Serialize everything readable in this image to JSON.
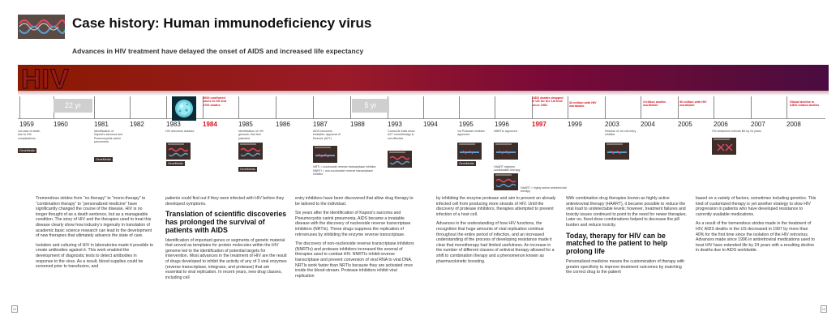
{
  "header": {
    "title": "Case history: Human immunodeficiency virus",
    "subtitle": "Advances in HIV treatment have delayed the onset of AIDS and increased life expectancy",
    "banner_label": "HIV"
  },
  "timeline": {
    "years": [
      {
        "label": "1959",
        "red": false
      },
      {
        "label": "1960",
        "red": false
      },
      {
        "label": "1981",
        "red": false
      },
      {
        "label": "1982",
        "red": false
      },
      {
        "label": "1983",
        "red": false
      },
      {
        "label": "1984",
        "red": true
      },
      {
        "label": "1985",
        "red": false
      },
      {
        "label": "1986",
        "red": false
      },
      {
        "label": "1987",
        "red": false
      },
      {
        "label": "1988",
        "red": false
      },
      {
        "label": "1993",
        "red": false
      },
      {
        "label": "1994",
        "red": false
      },
      {
        "label": "1995",
        "red": false
      },
      {
        "label": "1996",
        "red": false
      },
      {
        "label": "1997",
        "red": true
      },
      {
        "label": "1999",
        "red": false
      },
      {
        "label": "2003",
        "red": false
      },
      {
        "label": "2004",
        "red": false
      },
      {
        "label": "2005",
        "red": false
      },
      {
        "label": "2006",
        "red": false
      },
      {
        "label": "2007",
        "red": false
      },
      {
        "label": "2008",
        "red": false
      }
    ],
    "gaps": [
      "22 yr",
      "5 yr"
    ],
    "notes_below": {
      "y1959": "1st case of death due to HIV complications",
      "y1981": "Identification of Kaposi's sarcoma and Pneumocystis carinii pneumonia",
      "y1983": "HIV retrovirus isolated",
      "y1985": "Identification of HIV genome; first test patented",
      "y1987": "AIDS becomes treatable; approval of Retrovir (AZT)",
      "y1993": "Concorde trials show AZT monotherapy is not effective",
      "y1995": "1st Protease inhibitor approved",
      "y1996": "NNRTIs approved",
      "y1996b": "HAART regimen combination therapy",
      "y2003": "Release of 1st cell entry inhibitor",
      "y2006": "HIV treatment extends life by 24 years"
    },
    "notes_above_red": {
      "y1984": "8000 confirmed cases in US and 3700 deaths",
      "y1997": "AIDS deaths dropped in US for the 1st time since 1981",
      "y1999": "33 million with HIV worldwide",
      "y2004": "3 trillion deaths worldwide",
      "y2005": "40 million with HIV worldwide",
      "y2008": "Global decline in AIDS-related deaths"
    },
    "legend": {
      "nrti": "NRTI = nucleoside reverse transcriptase inhibitor",
      "nnrti": "NNRTI = non-nucleoside reverse transcriptase inhibitor",
      "haart": "HAART = highly active antiretroviral therapy"
    },
    "chip_label": "GeneMedia"
  },
  "article": {
    "col1": [
      "Tremendous strides from “no therapy” to “mono-therapy” to “combination therapy” to “personalized medicine” have significantly changed the course of the disease. HIV is no longer thought of as a death sentence, but as a manageable condition. The story of HIV and the therapies used to treat this disease clearly show how industry’s ingenuity in translation of academic basic science research can lead to the development of new therapies that ultimately advance the state of care.",
      "Isolation and culturing of HIV in laboratories made it possible to create antibodies against it. This work enabled the development of diagnostic tests to detect antibodies in response to the virus. As a result, blood supplies could be screened prior to transfusion, and"
    ],
    "col2_intro": "patients could find out if they were infected with HIV before they developed symptoms.",
    "col2_heading": "Translation of scientific discoveries has prolonged the survival of patients with AIDS",
    "col2_body": "Identification of important genes or segments of genetic material that served as templates for protein molecules within the HIV genome led to the identification of potential targets for intervention. Most advances in the treatment of HIV are the result of drugs developed to inhibit the activity of any of 3 viral enzymes (reverse transcriptase, integrase, and protease) that are essential to viral replication. In recent years, new drug classes, including cell",
    "col3": [
      "entry inhibitors have been discovered that allow drug therapy to be tailored to the individual.",
      "Six years after the identification of Kaposi’s sarcoma and Pneumocystis carinii pneumonia, AIDS became a treatable disease with the discovery of nucleoside reverse transcriptase inhibitors (NRTIs). These drugs suppress the replication of retroviruses by inhibiting the enzyme reverse transcriptase.",
      "The discovery of non-nucleoside reverse transcriptase inhibitors (NNRTIs) and protease inhibitors increased the arsenal of therapies used to combat HIV. NNRTIs inhibit reverse transcriptase and prevent conversion of viral RNA to viral DNA. NRTIs work faster than NRTIs because they are activated once inside the blood-stream. Protease inhibitors inhibit viral replication"
    ],
    "col4": [
      "by inhibiting the enzyme protease and aim to prevent an already infected cell from producing more strands of HIV. Until the discovery of protease inhibitors, therapies attempted to prevent infection of a host cell.",
      "Advances in the understanding of how HIV functions, the recognition that huge amounts of viral replication continue throughout the entire period of infection, and an increased understanding of the process of developing resistance made it clear that monotherapy had limited usefulness. An increase in the number of different classes of antiviral therapy allowed for a shift to combination therapy and a phenomenon known as pharmacokinetic boosting."
    ],
    "col5_intro": "With combination drug therapies known as highly active antiretroviral therapy (HAART), it became possible to reduce the viral load to undetectable levels; however, treatment failures and toxicity issues continued to point to the need for newer therapies. Later on, fixed-dose combinations helped to decrease the pill burden and reduce toxicity.",
    "col5_heading": "Today, therapy for HIV can be matched to the patient to help prolong life",
    "col5_body": "Personalized medicine means the customization of therapy with greater specificity to improve treatment outcomes by matching the correct drug to the patient",
    "col6": [
      "based on a variety of factors, sometimes including genetics. This kind of customized therapy is yet another strategy to slow HIV progression in patients who have developed resistance to currently available medications.",
      "As a result of the tremendous strides made in the treatment of HIV, AIDS deaths in the US decreased in 1997 by more than 40% for the first time since the isolation of the HIV retrovirus. Advances made since 1996 in antiretroviral medications used to treat HIV have extended life by 24 years with a resulting decline in deaths due to AIDS worldwide."
    ]
  },
  "page_numbers": {
    "left": "12",
    "right": "13"
  },
  "colors": {
    "accent_red": "#d4121f",
    "banner_start": "#8a1a00",
    "banner_end": "#4a0c40"
  }
}
